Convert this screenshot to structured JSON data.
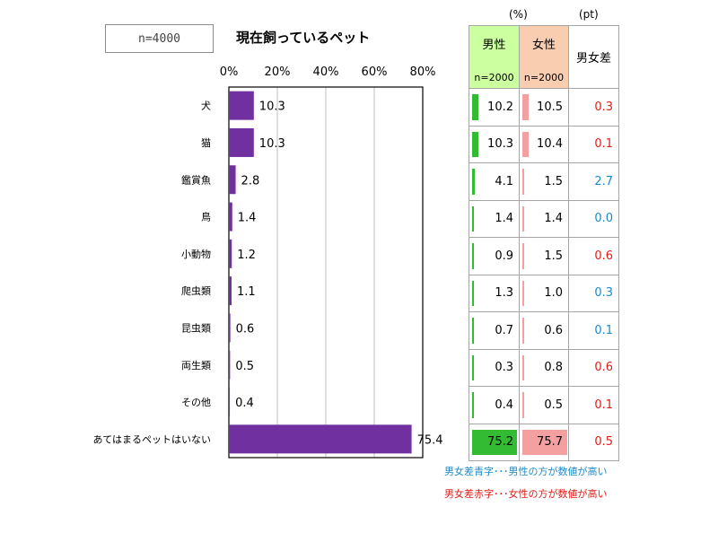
{
  "sample_label": "n=4000",
  "title": "現在飼っているペット",
  "chart_data": {
    "type": "bar",
    "orientation": "horizontal",
    "title": "現在飼っているペット",
    "categories": [
      "犬",
      "猫",
      "鑑賞魚",
      "鳥",
      "小動物",
      "爬虫類",
      "昆虫類",
      "両生類",
      "その他",
      "あてはまるペットはいない"
    ],
    "values": [
      10.3,
      10.3,
      2.8,
      1.4,
      1.2,
      1.1,
      0.6,
      0.5,
      0.4,
      75.4
    ],
    "value_labels": [
      "10.3",
      "10.3",
      "2.8",
      "1.4",
      "1.2",
      "1.1",
      "0.6",
      "0.5",
      "0.4",
      "75.4"
    ],
    "xlim": [
      0,
      80
    ],
    "x_ticks": [
      "0%",
      "20%",
      "40%",
      "60%",
      "80%"
    ],
    "grid": true,
    "bar_color": "#7030a0"
  },
  "table": {
    "unit_left": "(%)",
    "unit_right": "(pt)",
    "headers": {
      "male": "男性",
      "male_n": "n=2000",
      "female": "女性",
      "female_n": "n=2000",
      "diff": "男女差"
    },
    "rows": [
      {
        "male": "10.2",
        "female": "10.5",
        "diff": "0.3",
        "diff_sign": "female"
      },
      {
        "male": "10.3",
        "female": "10.4",
        "diff": "0.1",
        "diff_sign": "female"
      },
      {
        "male": "4.1",
        "female": "1.5",
        "diff": "2.7",
        "diff_sign": "male"
      },
      {
        "male": "1.4",
        "female": "1.4",
        "diff": "0.0",
        "diff_sign": "male"
      },
      {
        "male": "0.9",
        "female": "1.5",
        "diff": "0.6",
        "diff_sign": "female"
      },
      {
        "male": "1.3",
        "female": "1.0",
        "diff": "0.3",
        "diff_sign": "male"
      },
      {
        "male": "0.7",
        "female": "0.6",
        "diff": "0.1",
        "diff_sign": "male"
      },
      {
        "male": "0.3",
        "female": "0.8",
        "diff": "0.6",
        "diff_sign": "female"
      },
      {
        "male": "0.4",
        "female": "0.5",
        "diff": "0.1",
        "diff_sign": "female"
      },
      {
        "male": "75.2",
        "female": "75.7",
        "diff": "0.5",
        "diff_sign": "female"
      }
    ],
    "male_bar_color": "#33bb33",
    "female_bar_color": "#f4a0a0",
    "male_diff_color": "#1e8ac8",
    "female_diff_color": "#e0201a"
  },
  "notes": {
    "blue": "男女差青字･･･男性の方が数値が高い",
    "red": "男女差赤字･･･女性の方が数値が高い"
  }
}
